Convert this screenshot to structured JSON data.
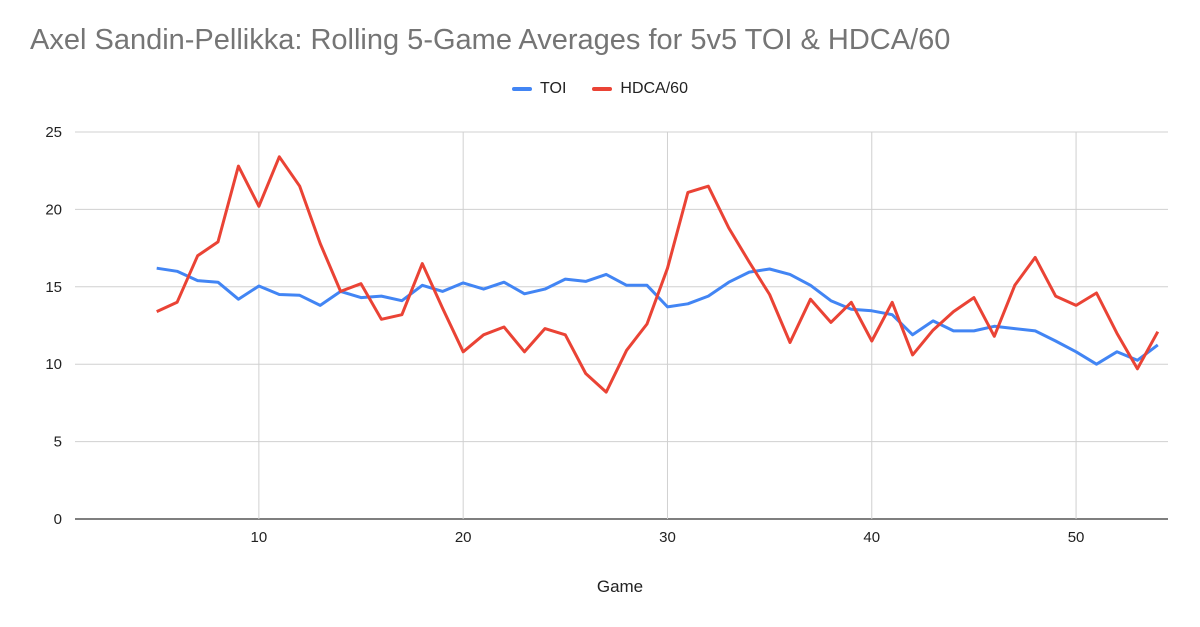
{
  "chart_data": {
    "type": "line",
    "title": "Axel Sandin-Pellikka: Rolling 5-Game Averages for 5v5 TOI & HDCA/60",
    "xlabel": "Game",
    "ylabel": "",
    "xlim": [
      1,
      54.5
    ],
    "ylim": [
      0,
      25
    ],
    "xticks": [
      10,
      20,
      30,
      40,
      50
    ],
    "yticks": [
      0,
      5,
      10,
      15,
      20,
      25
    ],
    "grid": true,
    "legend": "top",
    "x": [
      5,
      6,
      7,
      8,
      9,
      10,
      11,
      12,
      13,
      14,
      15,
      16,
      17,
      18,
      19,
      20,
      21,
      22,
      23,
      24,
      25,
      26,
      27,
      28,
      29,
      30,
      31,
      32,
      33,
      34,
      35,
      36,
      37,
      38,
      39,
      40,
      41,
      42,
      43,
      44,
      45,
      46,
      47,
      48,
      49,
      50,
      51,
      52,
      53,
      54
    ],
    "series": [
      {
        "name": "TOI",
        "color": "#4285f4",
        "values": [
          16.2,
          16.0,
          15.4,
          15.3,
          14.2,
          15.05,
          14.5,
          14.45,
          13.8,
          14.7,
          14.3,
          14.4,
          14.1,
          15.1,
          14.7,
          15.25,
          14.85,
          15.3,
          14.55,
          14.85,
          15.5,
          15.35,
          15.8,
          15.1,
          15.1,
          13.7,
          13.9,
          14.4,
          15.3,
          15.95,
          16.15,
          15.8,
          15.1,
          14.1,
          13.55,
          13.45,
          13.2,
          11.9,
          12.8,
          12.15,
          12.15,
          12.45,
          12.3,
          12.15,
          11.5,
          10.8,
          10.0,
          10.8,
          10.25,
          11.25
        ]
      },
      {
        "name": "HDCA/60",
        "color": "#ea4335",
        "values": [
          13.4,
          14.0,
          17.0,
          17.9,
          22.8,
          20.2,
          23.4,
          21.5,
          17.8,
          14.7,
          15.2,
          12.9,
          13.2,
          16.5,
          13.6,
          10.8,
          11.9,
          12.4,
          10.8,
          12.3,
          11.9,
          9.4,
          8.2,
          10.9,
          12.6,
          16.2,
          21.1,
          21.5,
          18.8,
          16.6,
          14.5,
          11.4,
          14.2,
          12.7,
          14.0,
          11.5,
          14.0,
          10.6,
          12.2,
          13.4,
          14.3,
          11.8,
          15.1,
          16.9,
          14.4,
          13.8,
          14.6,
          12.0,
          9.7,
          12.1
        ]
      }
    ]
  }
}
